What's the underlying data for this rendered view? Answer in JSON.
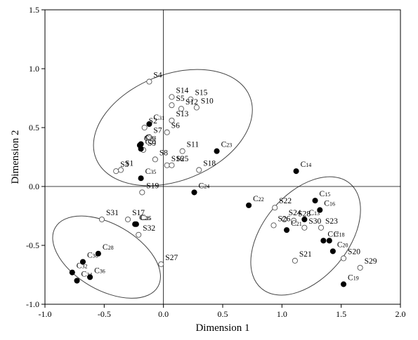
{
  "chart_data": {
    "type": "scatter",
    "xlabel": "Dimension 1",
    "ylabel": "Dimension 2",
    "xlim": [
      -1.0,
      2.0
    ],
    "ylim": [
      -1.0,
      1.5
    ],
    "xticks": [
      "-1.0",
      "-0.5",
      "0.0",
      "0.5",
      "1.0",
      "1.5",
      "2.0"
    ],
    "yticks": [
      "-1.0",
      "-0.5",
      "0.0",
      "0.5",
      "1.0",
      "1.5"
    ],
    "xtick_values": [
      -1.0,
      -0.5,
      0.0,
      0.5,
      1.0,
      1.5,
      2.0
    ],
    "ytick_values": [
      -1.0,
      -0.5,
      0.0,
      0.5,
      1.0,
      1.5
    ],
    "grid": false,
    "reference_lines": {
      "x": 0,
      "y": 0
    },
    "series": [
      {
        "marker": "open-circle",
        "points": [
          {
            "label": "S1",
            "x": -0.36,
            "y": 0.14
          },
          {
            "label": "S2",
            "x": -0.16,
            "y": 0.5
          },
          {
            "label": "S3",
            "x": -0.4,
            "y": 0.13
          },
          {
            "label": "S4",
            "x": -0.12,
            "y": 0.89
          },
          {
            "label": "S5",
            "x": 0.07,
            "y": 0.69
          },
          {
            "label": "S6",
            "x": 0.03,
            "y": 0.46
          },
          {
            "label": "S7",
            "x": -0.12,
            "y": 0.42
          },
          {
            "label": "S8",
            "x": -0.07,
            "y": 0.23
          },
          {
            "label": "S9",
            "x": -0.17,
            "y": 0.31
          },
          {
            "label": "S10",
            "x": 0.28,
            "y": 0.67
          },
          {
            "label": "S11",
            "x": 0.16,
            "y": 0.3
          },
          {
            "label": "S12",
            "x": 0.15,
            "y": 0.66
          },
          {
            "label": "S13",
            "x": 0.07,
            "y": 0.56
          },
          {
            "label": "S14",
            "x": 0.07,
            "y": 0.76
          },
          {
            "label": "S15",
            "x": 0.23,
            "y": 0.74
          },
          {
            "label": "S16",
            "x": 0.03,
            "y": 0.18
          },
          {
            "label": "S17",
            "x": -0.3,
            "y": -0.28
          },
          {
            "label": "S18",
            "x": 0.3,
            "y": 0.14
          },
          {
            "label": "S19",
            "x": -0.18,
            "y": -0.05
          },
          {
            "label": "S20",
            "x": 1.52,
            "y": -0.61
          },
          {
            "label": "S21",
            "x": 1.11,
            "y": -0.63
          },
          {
            "label": "S22",
            "x": 0.94,
            "y": -0.18
          },
          {
            "label": "S23",
            "x": 1.33,
            "y": -0.35
          },
          {
            "label": "S24",
            "x": 1.02,
            "y": -0.28
          },
          {
            "label": "S25",
            "x": 0.07,
            "y": 0.18
          },
          {
            "label": "S26",
            "x": 0.93,
            "y": -0.33
          },
          {
            "label": "S27",
            "x": -0.02,
            "y": -0.66
          },
          {
            "label": "S28",
            "x": 1.1,
            "y": -0.29
          },
          {
            "label": "S29",
            "x": 1.66,
            "y": -0.69
          },
          {
            "label": "S30",
            "x": 1.19,
            "y": -0.35
          },
          {
            "label": "S31",
            "x": -0.52,
            "y": -0.28
          },
          {
            "label": "S32",
            "x": -0.21,
            "y": -0.41
          }
        ]
      },
      {
        "marker": "filled-circle",
        "points": [
          {
            "label": "C13",
            "x": 1.19,
            "y": -0.28
          },
          {
            "label": "C14",
            "x": 1.12,
            "y": 0.13
          },
          {
            "label": "C15",
            "x": 1.28,
            "y": -0.12
          },
          {
            "label": "C16",
            "x": 1.32,
            "y": -0.2
          },
          {
            "label": "C17",
            "x": 1.35,
            "y": -0.46
          },
          {
            "label": "C18",
            "x": 1.4,
            "y": -0.46
          },
          {
            "label": "C19",
            "x": 1.52,
            "y": -0.83
          },
          {
            "label": "C20",
            "x": 1.43,
            "y": -0.55
          },
          {
            "label": "C21",
            "x": 1.04,
            "y": -0.37
          },
          {
            "label": "C22",
            "x": 0.72,
            "y": -0.16
          },
          {
            "label": "C23",
            "x": 0.45,
            "y": 0.3
          },
          {
            "label": "C24",
            "x": 0.26,
            "y": -0.05
          },
          {
            "label": "C25",
            "x": -0.23,
            "y": -0.32
          },
          {
            "label": "C26",
            "x": -0.24,
            "y": -0.32
          },
          {
            "label": "C27",
            "x": -0.19,
            "y": 0.32
          },
          {
            "label": "C28",
            "x": -0.55,
            "y": -0.57
          },
          {
            "label": "C29",
            "x": -0.2,
            "y": 0.35
          },
          {
            "label": "C30",
            "x": -0.68,
            "y": -0.64
          },
          {
            "label": "C31",
            "x": -0.12,
            "y": 0.53
          },
          {
            "label": "C32",
            "x": -0.77,
            "y": -0.73
          },
          {
            "label": "C33",
            "x": -0.19,
            "y": 0.36
          },
          {
            "label": "C34",
            "x": -0.73,
            "y": -0.8
          },
          {
            "label": "C35",
            "x": -0.19,
            "y": 0.07
          },
          {
            "label": "C36",
            "x": -0.62,
            "y": -0.77
          }
        ]
      }
    ],
    "ellipses": [
      {
        "cx": 0.08,
        "cy": 0.5,
        "rx": 0.7,
        "ry": 0.45,
        "angle_deg": -22
      },
      {
        "cx": 1.2,
        "cy": -0.42,
        "rx": 0.58,
        "ry": 0.36,
        "angle_deg": -50
      },
      {
        "cx": -0.48,
        "cy": -0.6,
        "rx": 0.5,
        "ry": 0.28,
        "angle_deg": 30
      }
    ]
  }
}
